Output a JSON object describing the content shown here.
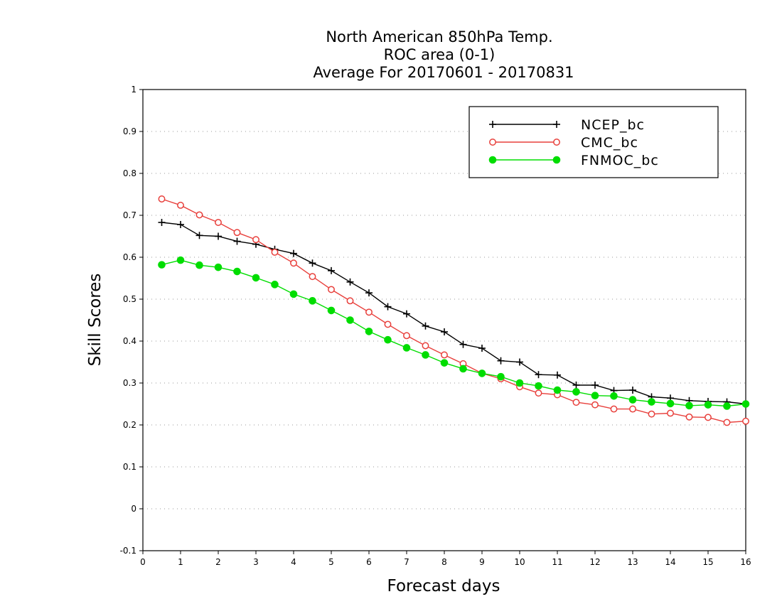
{
  "chart_data": {
    "type": "line",
    "title": [
      "North American 850hPa Temp.",
      "ROC area (0-1)",
      "Average For 20170601 - 20170831"
    ],
    "xlabel": "Forecast days",
    "ylabel": "Skill Scores",
    "xlim": [
      0,
      16
    ],
    "ylim": [
      -0.1,
      1
    ],
    "x_ticks": [
      "0",
      "1",
      "2",
      "3",
      "4",
      "5",
      "6",
      "7",
      "8",
      "9",
      "10",
      "11",
      "12",
      "13",
      "14",
      "15",
      "16"
    ],
    "y_ticks": [
      "-0.1",
      "0",
      "0.1",
      "0.2",
      "0.3",
      "0.4",
      "0.5",
      "0.6",
      "0.7",
      "0.8",
      "0.9",
      "1"
    ],
    "grid": "horizontal dotted",
    "legend_position": "top-right",
    "x": [
      0.5,
      1,
      1.5,
      2,
      2.5,
      3,
      3.5,
      4,
      4.5,
      5,
      5.5,
      6,
      6.5,
      7,
      7.5,
      8,
      8.5,
      9,
      9.5,
      10,
      10.5,
      11,
      11.5,
      12,
      12.5,
      13,
      13.5,
      14,
      14.5,
      15,
      15.5,
      16
    ],
    "series": [
      {
        "name": "NCEP_bc",
        "color": "#000000",
        "marker": "plus",
        "values": [
          0.683,
          0.678,
          0.652,
          0.65,
          0.638,
          0.631,
          0.619,
          0.609,
          0.586,
          0.568,
          0.541,
          0.515,
          0.482,
          0.465,
          0.436,
          0.422,
          0.392,
          0.383,
          0.353,
          0.35,
          0.32,
          0.319,
          0.295,
          0.295,
          0.282,
          0.283,
          0.267,
          0.264,
          0.258,
          0.256,
          0.255,
          0.25
        ]
      },
      {
        "name": "CMC_bc",
        "color": "#e8403c",
        "marker": "open-circle",
        "values": [
          0.739,
          0.724,
          0.701,
          0.683,
          0.659,
          0.642,
          0.612,
          0.586,
          0.554,
          0.523,
          0.496,
          0.469,
          0.44,
          0.413,
          0.389,
          0.367,
          0.346,
          0.323,
          0.31,
          0.291,
          0.276,
          0.272,
          0.254,
          0.248,
          0.238,
          0.238,
          0.226,
          0.228,
          0.219,
          0.218,
          0.206,
          0.209
        ]
      },
      {
        "name": "FNMOC_bc",
        "color": "#00dd00",
        "marker": "filled-circle",
        "values": [
          0.582,
          0.593,
          0.581,
          0.576,
          0.566,
          0.551,
          0.535,
          0.512,
          0.496,
          0.473,
          0.45,
          0.423,
          0.403,
          0.384,
          0.367,
          0.348,
          0.334,
          0.323,
          0.315,
          0.3,
          0.293,
          0.283,
          0.279,
          0.27,
          0.269,
          0.26,
          0.255,
          0.251,
          0.246,
          0.248,
          0.245,
          0.25
        ]
      }
    ]
  }
}
